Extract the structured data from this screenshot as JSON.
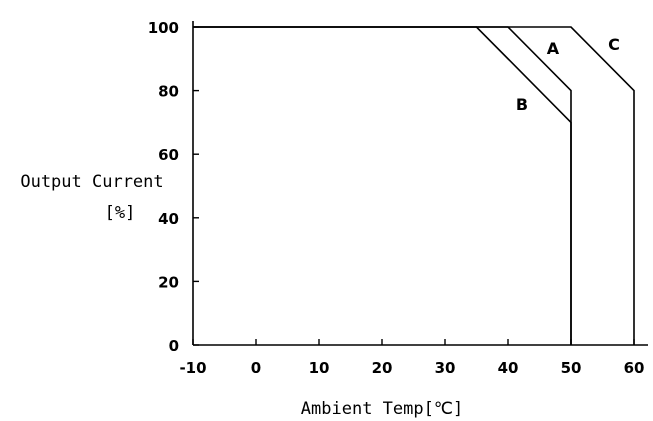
{
  "chart_data": {
    "type": "line",
    "title": "",
    "xlabel": "Ambient Temp[℃]",
    "ylabel_line1": "Output Current",
    "ylabel_line2": "[%]",
    "xlim": [
      -10,
      60
    ],
    "ylim": [
      0,
      100
    ],
    "x_ticks": [
      "-10",
      "0",
      "10",
      "20",
      "30",
      "40",
      "50",
      "60"
    ],
    "y_ticks": [
      "0",
      "20",
      "40",
      "60",
      "80",
      "100"
    ],
    "grid": false,
    "series": [
      {
        "name": "A",
        "x": [
          -10,
          40,
          50,
          50
        ],
        "y": [
          100,
          100,
          80,
          0
        ]
      },
      {
        "name": "B",
        "x": [
          -10,
          35,
          50,
          50
        ],
        "y": [
          100,
          100,
          70,
          0
        ]
      },
      {
        "name": "C",
        "x": [
          -10,
          50,
          60,
          60
        ],
        "y": [
          100,
          100,
          80,
          0
        ]
      }
    ]
  }
}
